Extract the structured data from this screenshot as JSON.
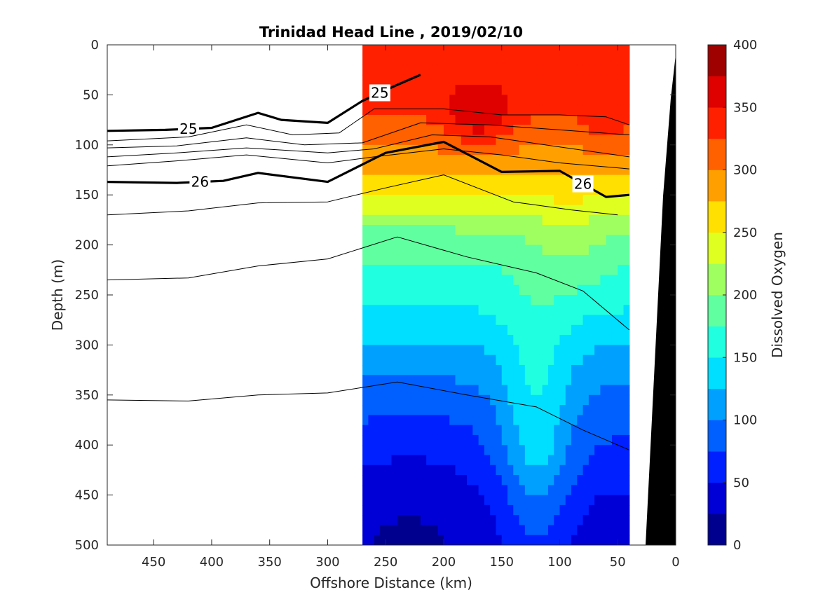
{
  "chart_data": {
    "type": "heatmap",
    "title": "Trinidad Head Line , 2019/02/10",
    "xlabel": "Offshore Distance (km)",
    "ylabel": "Depth (m)",
    "xlim": [
      490,
      0
    ],
    "ylim": [
      0,
      500
    ],
    "x_ticks": [
      450,
      400,
      350,
      300,
      250,
      200,
      150,
      100,
      50,
      0
    ],
    "y_ticks": [
      0,
      50,
      100,
      150,
      200,
      250,
      300,
      350,
      400,
      450,
      500
    ],
    "data_extent_x": [
      270,
      40
    ],
    "colorbar": {
      "label": "Dissolved Oxygen",
      "ticks": [
        0,
        50,
        100,
        150,
        200,
        250,
        300,
        350,
        400
      ],
      "levels": [
        0,
        25,
        50,
        75,
        100,
        125,
        150,
        175,
        200,
        225,
        250,
        275,
        300,
        325,
        350,
        375,
        400
      ],
      "colors": [
        "#00008f",
        "#0000d6",
        "#0020ff",
        "#0060ff",
        "#00a0ff",
        "#00dfff",
        "#20ffdf",
        "#60ffa0",
        "#a0ff60",
        "#dfff20",
        "#ffe000",
        "#ffa000",
        "#ff6000",
        "#ff2000",
        "#df0000",
        "#9f0000"
      ]
    },
    "oxygen_profile": [
      {
        "depth": 0,
        "value": 345
      },
      {
        "depth": 60,
        "value": 335
      },
      {
        "depth": 90,
        "value": 305
      },
      {
        "depth": 120,
        "value": 285
      },
      {
        "depth": 140,
        "value": 262
      },
      {
        "depth": 160,
        "value": 232
      },
      {
        "depth": 180,
        "value": 205
      },
      {
        "depth": 200,
        "value": 185
      },
      {
        "depth": 230,
        "value": 168
      },
      {
        "depth": 260,
        "value": 152
      },
      {
        "depth": 290,
        "value": 132
      },
      {
        "depth": 320,
        "value": 112
      },
      {
        "depth": 350,
        "value": 95
      },
      {
        "depth": 380,
        "value": 80
      },
      {
        "depth": 410,
        "value": 68
      },
      {
        "depth": 450,
        "value": 48
      },
      {
        "depth": 500,
        "value": 35
      }
    ],
    "density_contours": [
      {
        "label": "25",
        "bold": true,
        "points": [
          [
            490,
            86
          ],
          [
            440,
            85
          ],
          [
            400,
            83
          ],
          [
            360,
            68
          ],
          [
            340,
            75
          ],
          [
            300,
            78
          ],
          [
            270,
            56
          ],
          [
            240,
            40
          ],
          [
            220,
            30
          ]
        ]
      },
      {
        "label": "",
        "bold": false,
        "points": [
          [
            490,
            96
          ],
          [
            420,
            92
          ],
          [
            370,
            80
          ],
          [
            330,
            90
          ],
          [
            290,
            88
          ],
          [
            260,
            64
          ],
          [
            200,
            64
          ],
          [
            150,
            70
          ],
          [
            100,
            70
          ],
          [
            60,
            72
          ],
          [
            40,
            80
          ]
        ]
      },
      {
        "label": "",
        "bold": false,
        "points": [
          [
            490,
            103
          ],
          [
            430,
            101
          ],
          [
            370,
            93
          ],
          [
            320,
            100
          ],
          [
            270,
            98
          ],
          [
            220,
            78
          ],
          [
            160,
            80
          ],
          [
            100,
            85
          ],
          [
            40,
            90
          ]
        ]
      },
      {
        "label": "",
        "bold": false,
        "points": [
          [
            490,
            112
          ],
          [
            430,
            108
          ],
          [
            370,
            103
          ],
          [
            300,
            108
          ],
          [
            260,
            104
          ],
          [
            210,
            90
          ],
          [
            160,
            92
          ],
          [
            100,
            102
          ],
          [
            40,
            112
          ]
        ]
      },
      {
        "label": "",
        "bold": false,
        "points": [
          [
            490,
            121
          ],
          [
            430,
            116
          ],
          [
            370,
            110
          ],
          [
            300,
            118
          ],
          [
            260,
            112
          ],
          [
            200,
            104
          ],
          [
            150,
            110
          ],
          [
            100,
            118
          ],
          [
            40,
            124
          ]
        ]
      },
      {
        "label": "26",
        "bold": true,
        "points": [
          [
            490,
            137
          ],
          [
            430,
            138
          ],
          [
            390,
            136
          ],
          [
            360,
            128
          ],
          [
            300,
            137
          ],
          [
            250,
            108
          ],
          [
            200,
            97
          ],
          [
            150,
            127
          ],
          [
            100,
            126
          ],
          [
            60,
            152
          ],
          [
            40,
            150
          ]
        ]
      },
      {
        "label": "",
        "bold": false,
        "points": [
          [
            490,
            170
          ],
          [
            420,
            166
          ],
          [
            360,
            158
          ],
          [
            300,
            157
          ],
          [
            250,
            143
          ],
          [
            200,
            130
          ],
          [
            140,
            157
          ],
          [
            90,
            165
          ],
          [
            50,
            170
          ]
        ]
      },
      {
        "label": "",
        "bold": false,
        "points": [
          [
            490,
            235
          ],
          [
            420,
            233
          ],
          [
            360,
            221
          ],
          [
            300,
            214
          ],
          [
            240,
            192
          ],
          [
            180,
            212
          ],
          [
            120,
            228
          ],
          [
            80,
            246
          ],
          [
            40,
            285
          ]
        ]
      },
      {
        "label": "",
        "bold": false,
        "points": [
          [
            490,
            355
          ],
          [
            420,
            356
          ],
          [
            360,
            350
          ],
          [
            300,
            348
          ],
          [
            240,
            337
          ],
          [
            180,
            350
          ],
          [
            120,
            362
          ],
          [
            80,
            385
          ],
          [
            40,
            405
          ]
        ]
      }
    ]
  }
}
